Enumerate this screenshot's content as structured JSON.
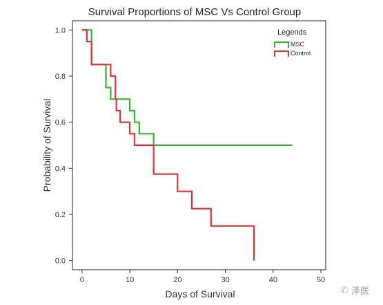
{
  "chart_data": {
    "type": "line",
    "step": true,
    "title": "Survival Proportions of MSC Vs Control Group",
    "xlabel": "Days of Survival",
    "ylabel": "Probability of Survival",
    "xlim": [
      -2,
      51
    ],
    "ylim": [
      -0.04,
      1.04
    ],
    "xticks": [
      0,
      10,
      20,
      30,
      40,
      50
    ],
    "yticks": [
      0.0,
      0.2,
      0.4,
      0.6,
      0.8,
      1.0
    ],
    "ytick_labels": [
      "0.0",
      "0.2",
      "0.4",
      "0.6",
      "0.8",
      "1.0"
    ],
    "grid": false,
    "legend": {
      "title": "Legends",
      "position": "top-right"
    },
    "series": [
      {
        "name": "MSC",
        "color": "#2db52d",
        "points": [
          [
            0,
            1.0
          ],
          [
            2,
            1.0
          ],
          [
            2,
            0.85
          ],
          [
            5,
            0.85
          ],
          [
            5,
            0.75
          ],
          [
            6,
            0.75
          ],
          [
            6,
            0.7
          ],
          [
            10,
            0.7
          ],
          [
            10,
            0.65
          ],
          [
            11,
            0.65
          ],
          [
            11,
            0.6
          ],
          [
            12,
            0.6
          ],
          [
            12,
            0.55
          ],
          [
            15,
            0.55
          ],
          [
            15,
            0.5
          ],
          [
            44,
            0.5
          ]
        ]
      },
      {
        "name": "Control",
        "color": "#e23030",
        "points": [
          [
            0,
            1.0
          ],
          [
            1,
            1.0
          ],
          [
            1,
            0.95
          ],
          [
            2,
            0.95
          ],
          [
            2,
            0.85
          ],
          [
            6,
            0.85
          ],
          [
            6,
            0.8
          ],
          [
            7,
            0.8
          ],
          [
            7,
            0.7
          ],
          [
            7.2,
            0.7
          ],
          [
            7.2,
            0.65
          ],
          [
            8,
            0.65
          ],
          [
            8,
            0.6
          ],
          [
            10,
            0.6
          ],
          [
            10,
            0.55
          ],
          [
            11,
            0.55
          ],
          [
            11,
            0.5
          ],
          [
            15,
            0.5
          ],
          [
            15,
            0.375
          ],
          [
            20,
            0.375
          ],
          [
            20,
            0.3
          ],
          [
            23,
            0.3
          ],
          [
            23,
            0.225
          ],
          [
            27,
            0.225
          ],
          [
            27,
            0.15
          ],
          [
            36,
            0.15
          ],
          [
            36,
            0.0
          ]
        ]
      }
    ]
  },
  "watermark": {
    "text": "泽医",
    "icon": "wechat-icon"
  }
}
